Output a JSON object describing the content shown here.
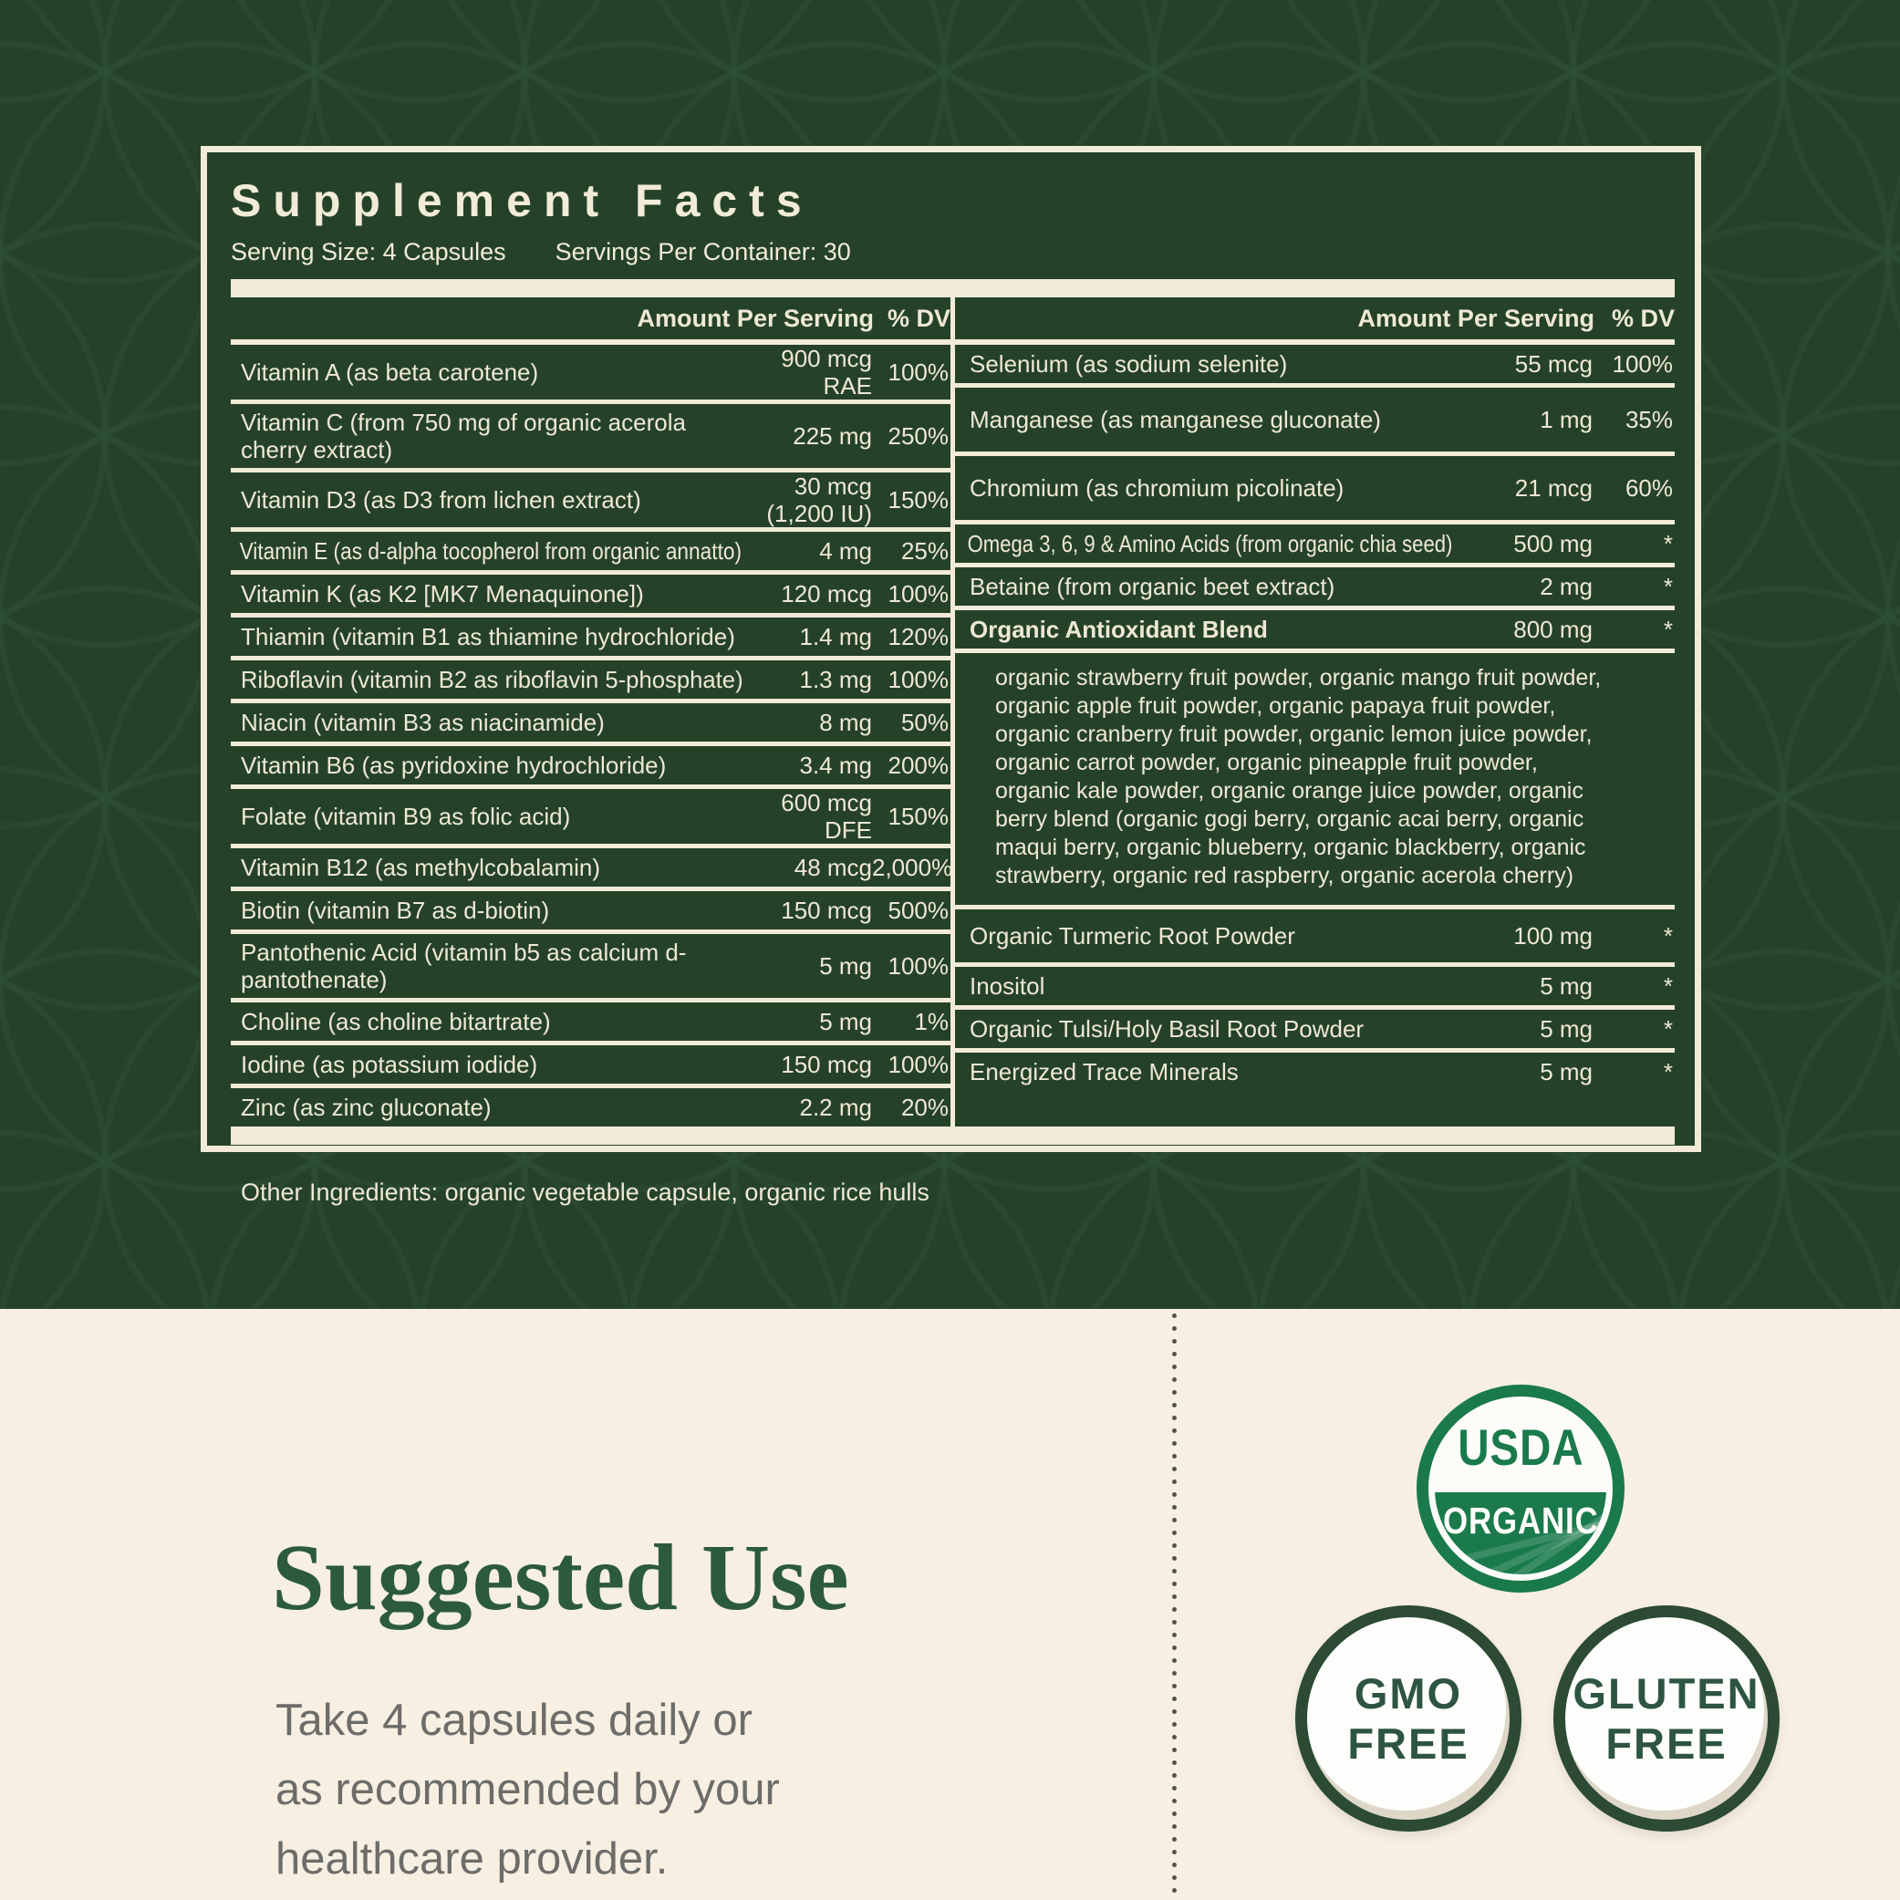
{
  "facts": {
    "title": "Supplement Facts",
    "serving_size": "Serving Size: 4 Capsules",
    "servings_per_container": "Servings Per Container: 30",
    "header": {
      "amount": "Amount Per Serving",
      "dv": "% DV"
    },
    "left_rows": [
      {
        "name": "Vitamin A (as beta carotene)",
        "amount": "900 mcg RAE",
        "dv": "100%"
      },
      {
        "name": "Vitamin C (from 750 mg of organic acerola cherry extract)",
        "amount": "225 mg",
        "dv": "250%",
        "wrap": true
      },
      {
        "name": "Vitamin D3 (as D3 from lichen extract)",
        "amount": "30 mcg",
        "amount2": "(1,200 IU)",
        "dv": "150%"
      },
      {
        "name": "Vitamin E (as d-alpha tocopherol from organic annatto)",
        "amount": "4 mg",
        "dv": "25%"
      },
      {
        "name": "Vitamin K (as K2 [MK7 Menaquinone])",
        "amount": "120 mcg",
        "dv": "100%"
      },
      {
        "name": "Thiamin (vitamin B1 as thiamine hydrochloride)",
        "amount": "1.4 mg",
        "dv": "120%"
      },
      {
        "name": "Riboflavin (vitamin B2 as riboflavin 5-phosphate)",
        "amount": "1.3 mg",
        "dv": "100%"
      },
      {
        "name": "Niacin (vitamin B3 as niacinamide)",
        "amount": "8 mg",
        "dv": "50%"
      },
      {
        "name": "Vitamin B6 (as pyridoxine hydrochloride)",
        "amount": "3.4 mg",
        "dv": "200%"
      },
      {
        "name": "Folate (vitamin B9 as folic acid)",
        "amount": "600 mcg DFE",
        "dv": "150%"
      },
      {
        "name": "Vitamin B12 (as methylcobalamin)",
        "amount": "48 mcg",
        "dv": "2,000%"
      },
      {
        "name": "Biotin (vitamin B7 as d-biotin)",
        "amount": "150 mcg",
        "dv": "500%"
      },
      {
        "name": "Pantothenic Acid (vitamin b5 as calcium d-pantothenate)",
        "amount": "5 mg",
        "dv": "100%",
        "wrap": true
      },
      {
        "name": "Choline (as choline bitartrate)",
        "amount": "5 mg",
        "dv": "1%"
      },
      {
        "name": "Iodine (as potassium iodide)",
        "amount": "150 mcg",
        "dv": "100%"
      },
      {
        "name": "Zinc (as zinc gluconate)",
        "amount": "2.2 mg",
        "dv": "20%"
      }
    ],
    "right_rows": [
      {
        "name": "Selenium (as sodium selenite)",
        "amount": "55 mcg",
        "dv": "100%"
      },
      {
        "name": "Manganese (as manganese gluconate)",
        "amount": "1 mg",
        "dv": "35%"
      },
      {
        "name": "Chromium (as chromium picolinate)",
        "amount": "21 mcg",
        "dv": "60%"
      },
      {
        "name": "Omega 3, 6, 9 & Amino Acids (from organic chia seed)",
        "amount": "500 mg",
        "dv": "*"
      },
      {
        "name": "Betaine (from organic beet extract)",
        "amount": "2 mg",
        "dv": "*"
      },
      {
        "name": "Organic Antioxidant Blend",
        "amount": "800 mg",
        "dv": "*",
        "bold": true
      },
      {
        "type": "desc",
        "text": "organic strawberry fruit powder, organic mango fruit powder, organic apple fruit powder, organic papaya fruit powder, organic cranberry fruit powder, organic lemon juice powder, organic carrot powder, organic pineapple fruit powder, organic kale powder, organic orange juice powder, organic berry blend (organic gogi berry, organic acai berry, organic maqui berry, organic blueberry, organic blackberry, organic strawberry, organic red raspberry, organic acerola cherry)"
      },
      {
        "name": "Organic Turmeric Root Powder",
        "amount": "100 mg",
        "dv": "*"
      },
      {
        "name": "Inositol",
        "amount": "5 mg",
        "dv": "*"
      },
      {
        "name": "Organic Tulsi/Holy Basil Root Powder",
        "amount": "5 mg",
        "dv": "*"
      },
      {
        "name": "Energized Trace Minerals",
        "amount": "5 mg",
        "dv": "*"
      }
    ],
    "other_ingredients": "Other Ingredients: organic vegetable capsule, organic rice hulls"
  },
  "suggested_use": {
    "heading": "Suggested Use",
    "lines": [
      "Take 4 capsules daily or",
      "as recommended by your",
      "healthcare provider."
    ]
  },
  "badges": {
    "usda": {
      "top": "USDA",
      "bottom": "ORGANIC"
    },
    "gmo": {
      "line1": "GMO",
      "line2": "FREE"
    },
    "gluten": {
      "line1": "GLUTEN",
      "line2": "FREE"
    }
  },
  "colors": {
    "page_green": "#254229",
    "label_cream": "#f1ebd8",
    "bottom_cream": "#f6efe2",
    "heading_green": "#2b5a3d",
    "body_gray": "#6d6c69",
    "usda_green": "#1a7a4c",
    "badge_ring_green": "#2c4a34"
  }
}
